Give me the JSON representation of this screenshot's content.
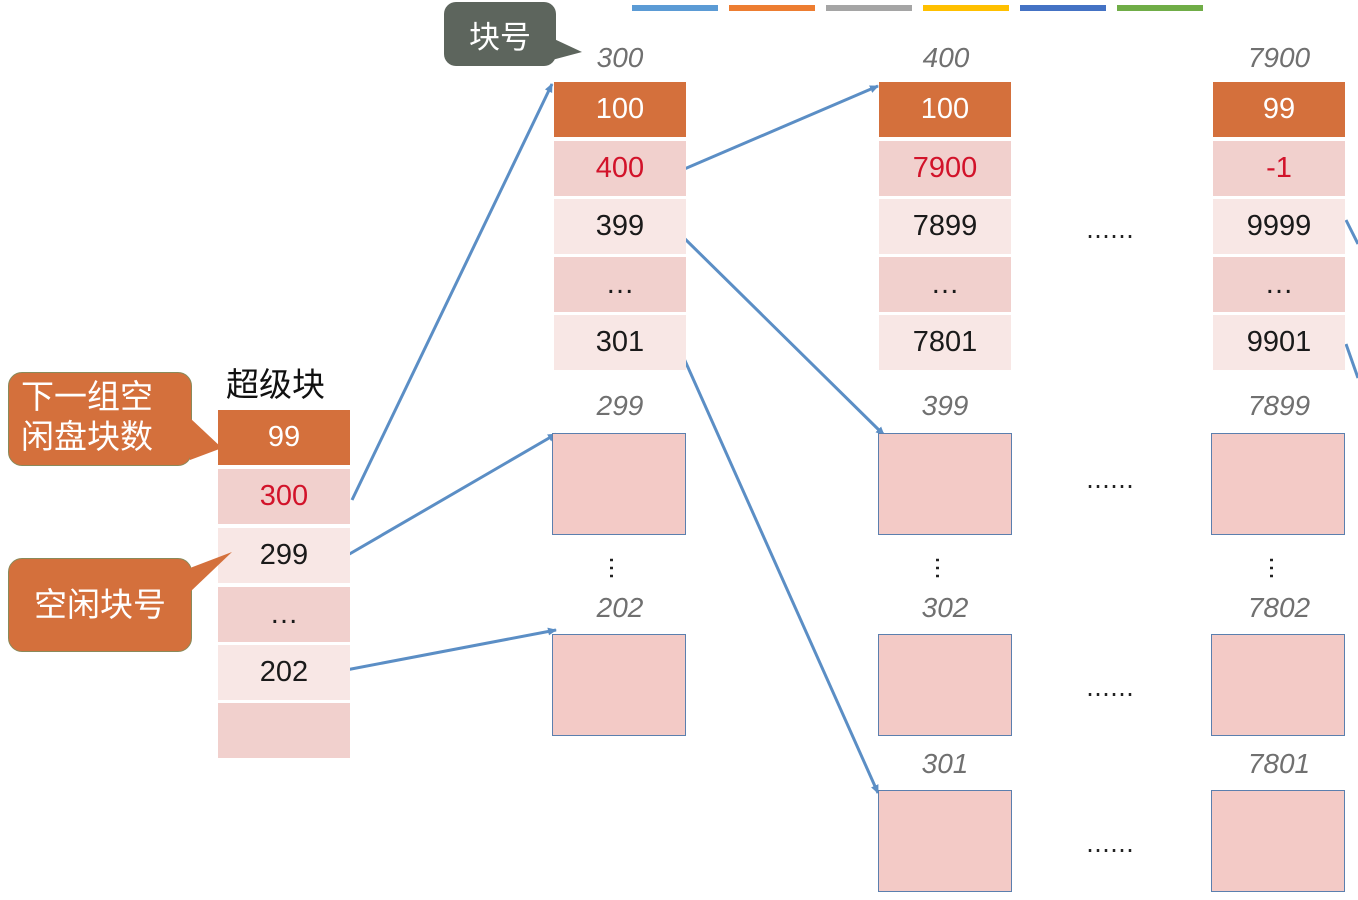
{
  "legend_colors": [
    "#5b9bd5",
    "#ed7d31",
    "#a5a5a5",
    "#ffc000",
    "#4472c4",
    "#70ad47"
  ],
  "superblock": {
    "title": "超级块",
    "header": "99",
    "cells": [
      "300",
      "299",
      "…",
      "202",
      ""
    ]
  },
  "callouts": {
    "block_number": "块号",
    "next_group_count": "下一组空闲盘块数",
    "free_block_number": "空闲块号"
  },
  "groups": [
    {
      "label": "300",
      "header": "100",
      "cells": [
        "400",
        "399",
        "…",
        "301"
      ],
      "boxes": [
        "299",
        "202"
      ]
    },
    {
      "label": "400",
      "header": "100",
      "cells": [
        "7900",
        "7899",
        "…",
        "7801"
      ],
      "boxes": [
        "399",
        "302",
        "301"
      ]
    },
    {
      "label": "7900",
      "header": "99",
      "cells": [
        "-1",
        "9999",
        "…",
        "9901"
      ],
      "boxes": [
        "7899",
        "7802",
        "7801"
      ]
    }
  ],
  "ellipsis": {
    "horizontal": "……",
    "vertical": "…"
  },
  "arrow_color": "#5b8ec5"
}
